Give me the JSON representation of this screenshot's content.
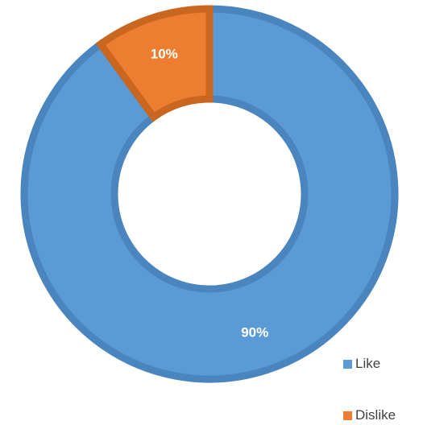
{
  "chart_data": {
    "type": "pie",
    "donut": true,
    "slices": [
      {
        "label": "Like",
        "value": 90,
        "display": "90%",
        "color": "#5B9BD5",
        "stroke": "#4A85BE"
      },
      {
        "label": "Dislike",
        "value": 10,
        "display": "10%",
        "color": "#ED7D31",
        "stroke": "#C9661F"
      }
    ],
    "legend": {
      "position": "bottom-right",
      "items": [
        "Like",
        "Dislike"
      ]
    }
  }
}
